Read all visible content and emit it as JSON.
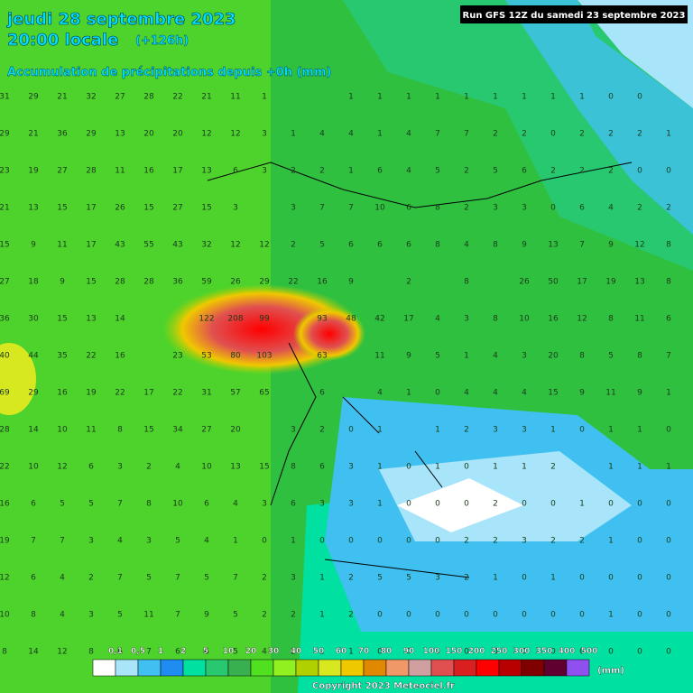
{
  "header": {
    "date": "jeudi 28 septembre 2023",
    "time": "20:00 locale",
    "lead": "(+126h)",
    "subtitle": "Accumulation de précipitations depuis +0h (mm)",
    "run": "Run GFS 12Z du samedi 23 septembre 2023"
  },
  "grid": [
    [
      31,
      29,
      21,
      32,
      27,
      28,
      22,
      21,
      11,
      1,
      null,
      null,
      1,
      1,
      1,
      1,
      1,
      1,
      1,
      1,
      1,
      0,
      0,
      null
    ],
    [
      29,
      21,
      36,
      29,
      13,
      20,
      20,
      12,
      12,
      3,
      1,
      4,
      4,
      1,
      4,
      7,
      7,
      2,
      2,
      0,
      2,
      2,
      2,
      1
    ],
    [
      23,
      19,
      27,
      28,
      11,
      16,
      17,
      13,
      6,
      3,
      2,
      2,
      1,
      6,
      4,
      5,
      2,
      5,
      6,
      2,
      2,
      2,
      0,
      0
    ],
    [
      21,
      13,
      15,
      17,
      26,
      15,
      27,
      15,
      3,
      null,
      3,
      7,
      7,
      10,
      6,
      8,
      2,
      3,
      3,
      0,
      6,
      4,
      2,
      2
    ],
    [
      15,
      9,
      11,
      17,
      43,
      55,
      43,
      32,
      12,
      12,
      2,
      5,
      6,
      6,
      6,
      8,
      4,
      8,
      9,
      13,
      7,
      9,
      12,
      8
    ],
    [
      27,
      18,
      9,
      15,
      28,
      28,
      36,
      59,
      26,
      29,
      22,
      16,
      9,
      null,
      2,
      null,
      8,
      null,
      26,
      50,
      17,
      19,
      13,
      8
    ],
    [
      36,
      30,
      15,
      13,
      14,
      null,
      null,
      122,
      208,
      99,
      null,
      93,
      48,
      42,
      17,
      4,
      3,
      8,
      10,
      16,
      12,
      8,
      11,
      6
    ],
    [
      40,
      44,
      35,
      22,
      16,
      null,
      23,
      53,
      80,
      103,
      null,
      63,
      null,
      11,
      9,
      5,
      1,
      4,
      3,
      20,
      8,
      5,
      8,
      7
    ],
    [
      69,
      29,
      16,
      19,
      22,
      17,
      22,
      31,
      57,
      65,
      null,
      6,
      null,
      4,
      1,
      0,
      4,
      4,
      4,
      15,
      9,
      11,
      9,
      1
    ],
    [
      28,
      14,
      10,
      11,
      8,
      15,
      34,
      27,
      20,
      null,
      3,
      2,
      0,
      1,
      null,
      1,
      2,
      3,
      3,
      1,
      0,
      1,
      1,
      0
    ],
    [
      22,
      10,
      12,
      6,
      3,
      2,
      4,
      10,
      13,
      15,
      8,
      6,
      3,
      1,
      0,
      1,
      0,
      1,
      1,
      2,
      null,
      1,
      1,
      1
    ],
    [
      16,
      6,
      5,
      5,
      7,
      8,
      10,
      6,
      4,
      3,
      6,
      3,
      3,
      1,
      0,
      0,
      0,
      2,
      0,
      0,
      1,
      0,
      0,
      0
    ],
    [
      19,
      7,
      7,
      3,
      4,
      3,
      5,
      4,
      1,
      0,
      1,
      0,
      0,
      0,
      0,
      0,
      2,
      2,
      3,
      2,
      2,
      1,
      0,
      0
    ],
    [
      12,
      6,
      4,
      2,
      7,
      5,
      7,
      5,
      7,
      2,
      3,
      1,
      2,
      5,
      5,
      3,
      2,
      1,
      0,
      1,
      0,
      0,
      0,
      0
    ],
    [
      10,
      8,
      4,
      3,
      5,
      11,
      7,
      9,
      5,
      2,
      2,
      1,
      2,
      0,
      0,
      0,
      0,
      0,
      0,
      0,
      0,
      1,
      0,
      0
    ],
    [
      8,
      14,
      12,
      8,
      6,
      7,
      6,
      6,
      5,
      4,
      2,
      2,
      1,
      0,
      0,
      0,
      0,
      0,
      0,
      0,
      0,
      0,
      0,
      0
    ]
  ],
  "legend": {
    "labels": [
      "0,1",
      "0,5",
      "1",
      "2",
      "5",
      "10",
      "20",
      "30",
      "40",
      "50",
      "60",
      "70",
      "80",
      "90",
      "100",
      "150",
      "200",
      "250",
      "300",
      "350",
      "400",
      "500"
    ],
    "colors": [
      "#ffffff",
      "#a8e4fa",
      "#40c0f0",
      "#1e8cf0",
      "#00e0a0",
      "#28c870",
      "#38b050",
      "#50e020",
      "#90f020",
      "#b0d000",
      "#d8e820",
      "#f0c800",
      "#e08800",
      "#f09868",
      "#d0a0a0",
      "#e05050",
      "#d82020",
      "#ff0000",
      "#b80000",
      "#800000",
      "#600030",
      "#9050f0"
    ],
    "unit": "(mm)"
  },
  "footer": {
    "copyright": "Copyright 2023 Meteociel.fr"
  }
}
